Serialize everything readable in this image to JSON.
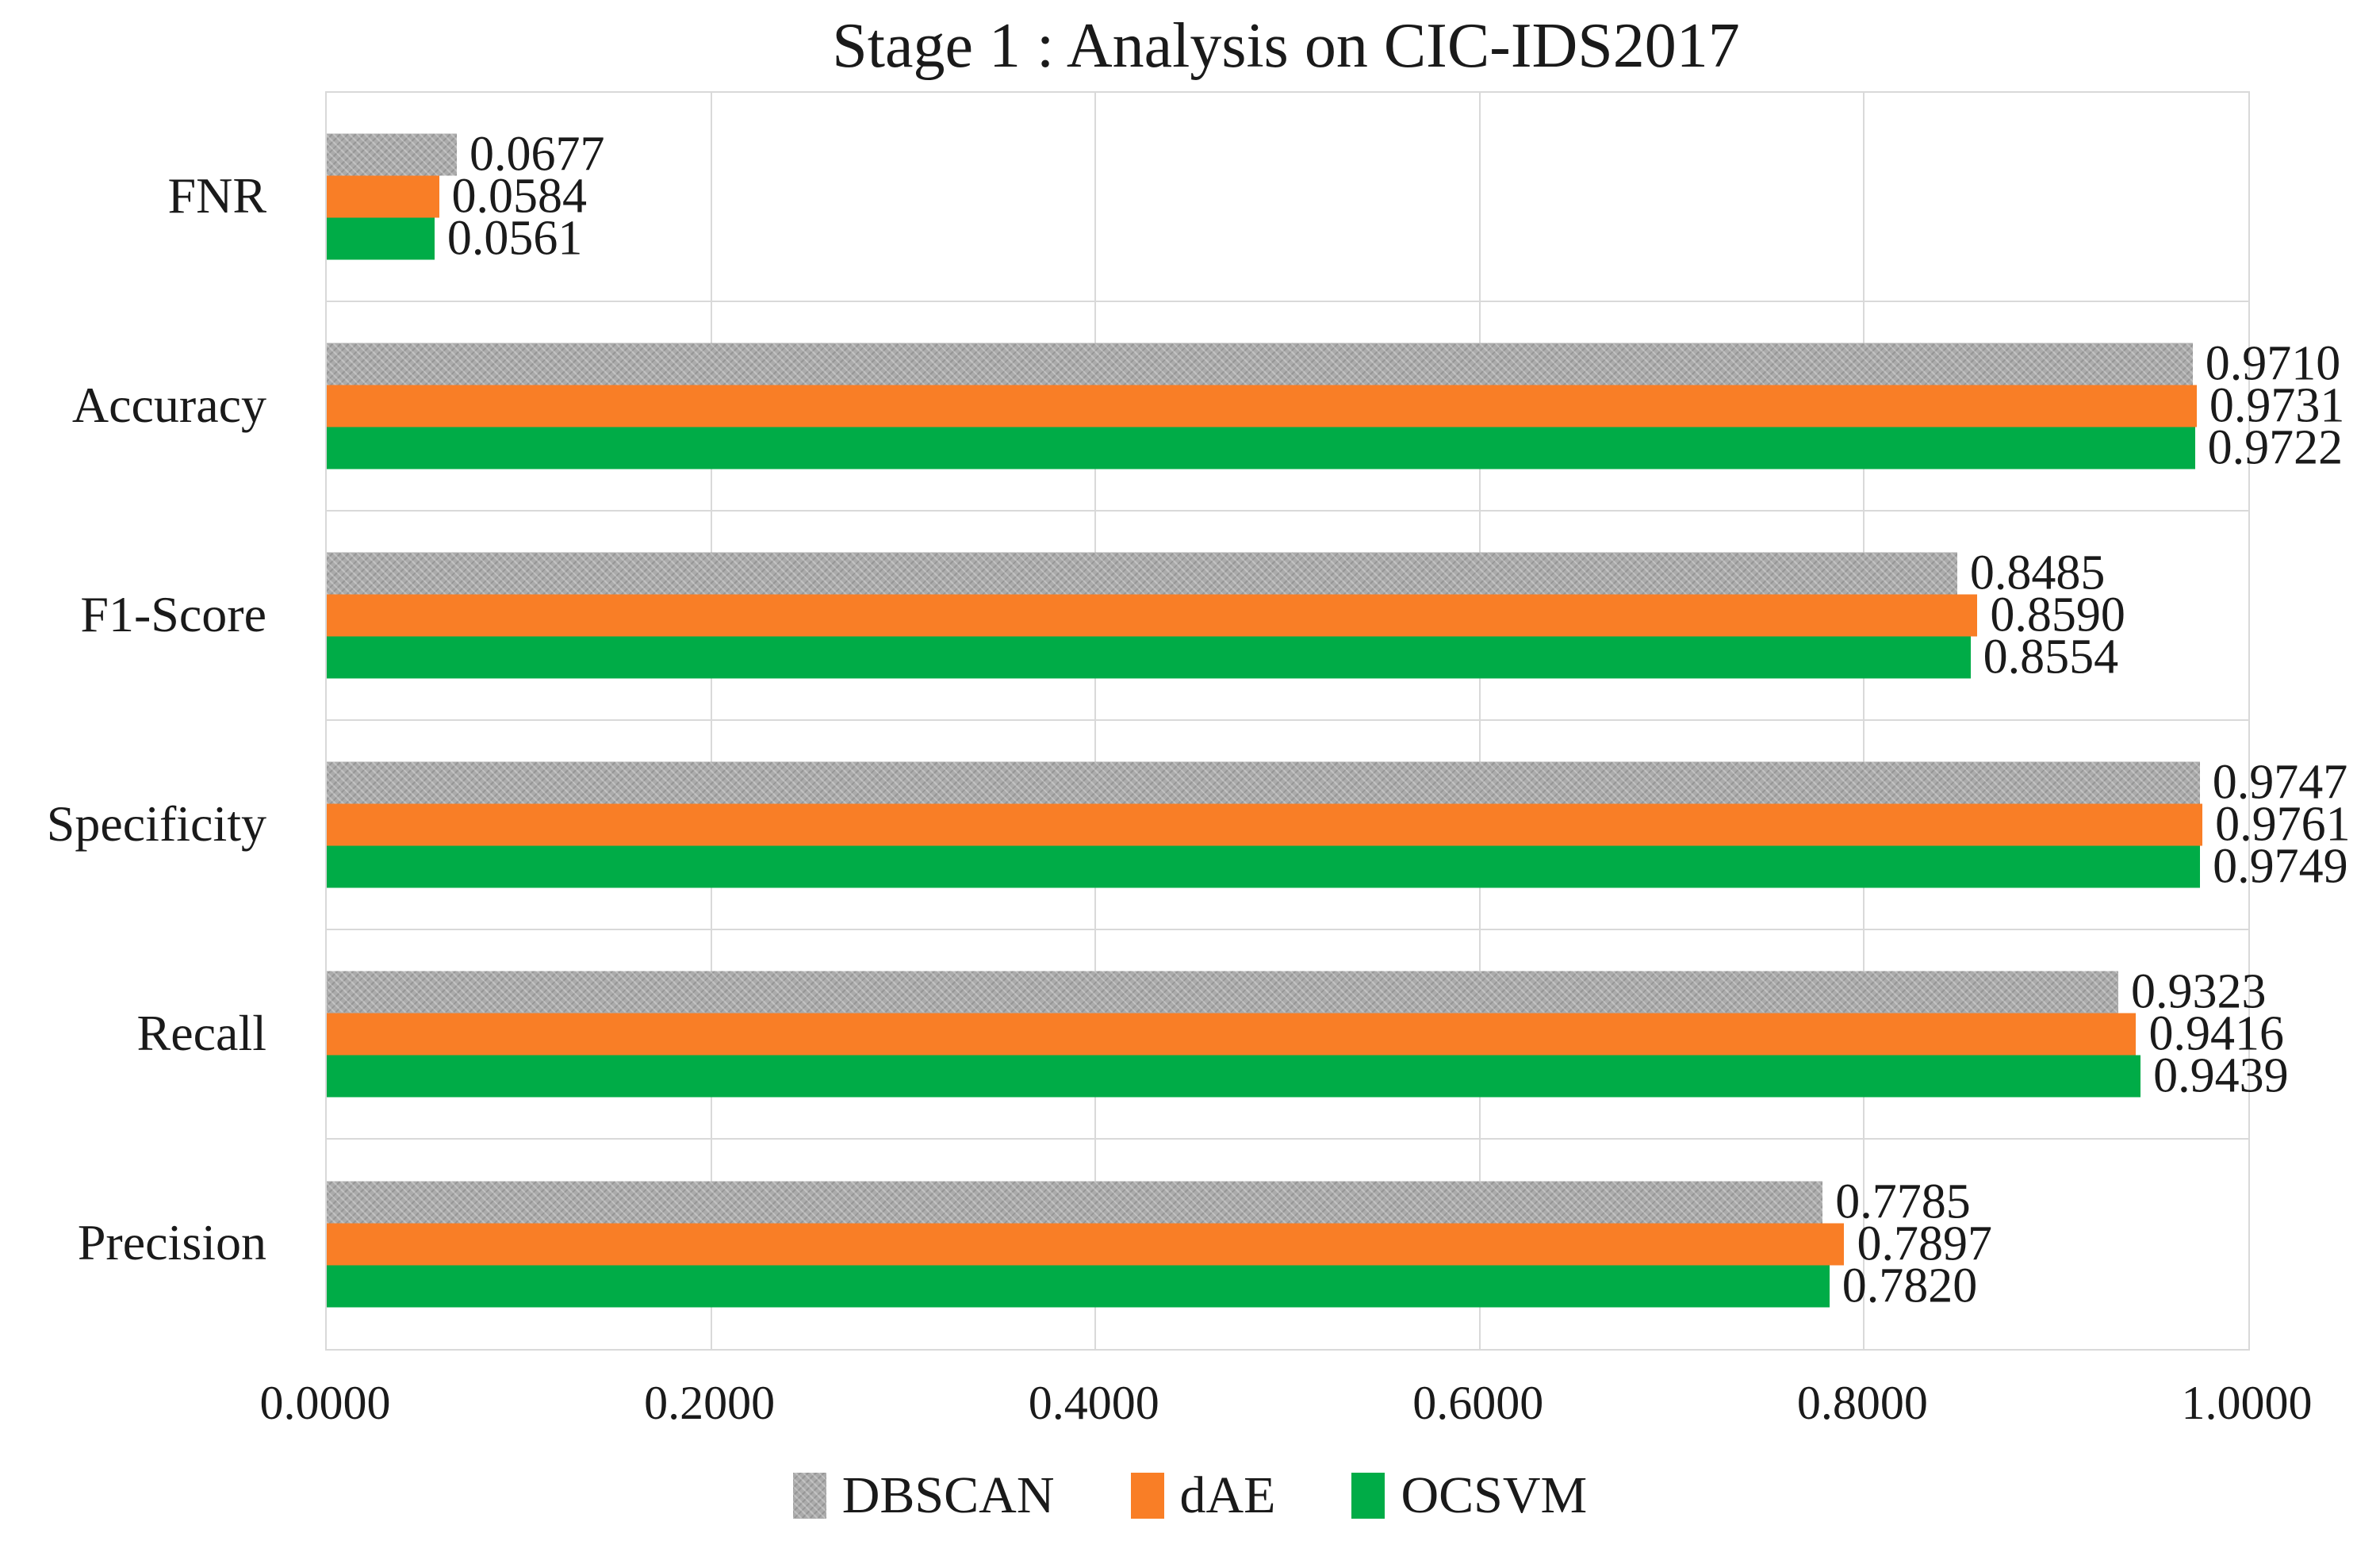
{
  "title": "Stage 1 : Analysis on CIC-IDS2017",
  "colors": {
    "dbscan": "#ababab",
    "dae": "#f97e26",
    "ocsvm": "#00ac47",
    "gridline": "#d9d9d9"
  },
  "chart_data": {
    "type": "bar",
    "orientation": "horizontal",
    "title": "Stage 1 : Analysis on CIC-IDS2017",
    "categories": [
      "FNR",
      "Accuracy",
      "F1-Score",
      "Specificity",
      "Recall",
      "Precision"
    ],
    "series": [
      {
        "name": "DBSCAN",
        "color": "#ababab",
        "pattern": true,
        "values": [
          0.0677,
          0.971,
          0.8485,
          0.9747,
          0.9323,
          0.7785
        ],
        "labels": [
          "0.0677",
          "0.9710",
          "0.8485",
          "0.9747",
          "0.9323",
          "0.7785"
        ]
      },
      {
        "name": "dAE",
        "color": "#f97e26",
        "pattern": false,
        "values": [
          0.0584,
          0.9731,
          0.859,
          0.9761,
          0.9416,
          0.7897
        ],
        "labels": [
          "0.0584",
          "0.9731",
          "0.8590",
          "0.9761",
          "0.9416",
          "0.7897"
        ]
      },
      {
        "name": "OCSVM",
        "color": "#00ac47",
        "pattern": false,
        "values": [
          0.0561,
          0.9722,
          0.8554,
          0.9749,
          0.9439,
          0.782
        ],
        "labels": [
          "0.0561",
          "0.9722",
          "0.8554",
          "0.9749",
          "0.9439",
          "0.7820"
        ]
      }
    ],
    "x_ticks": [
      "0.0000",
      "0.2000",
      "0.4000",
      "0.6000",
      "0.8000",
      "1.0000"
    ],
    "xlim": [
      0,
      1
    ],
    "grid": true,
    "legend_position": "bottom",
    "legend_entries": [
      "DBSCAN",
      "dAE",
      "OCSVM"
    ]
  }
}
